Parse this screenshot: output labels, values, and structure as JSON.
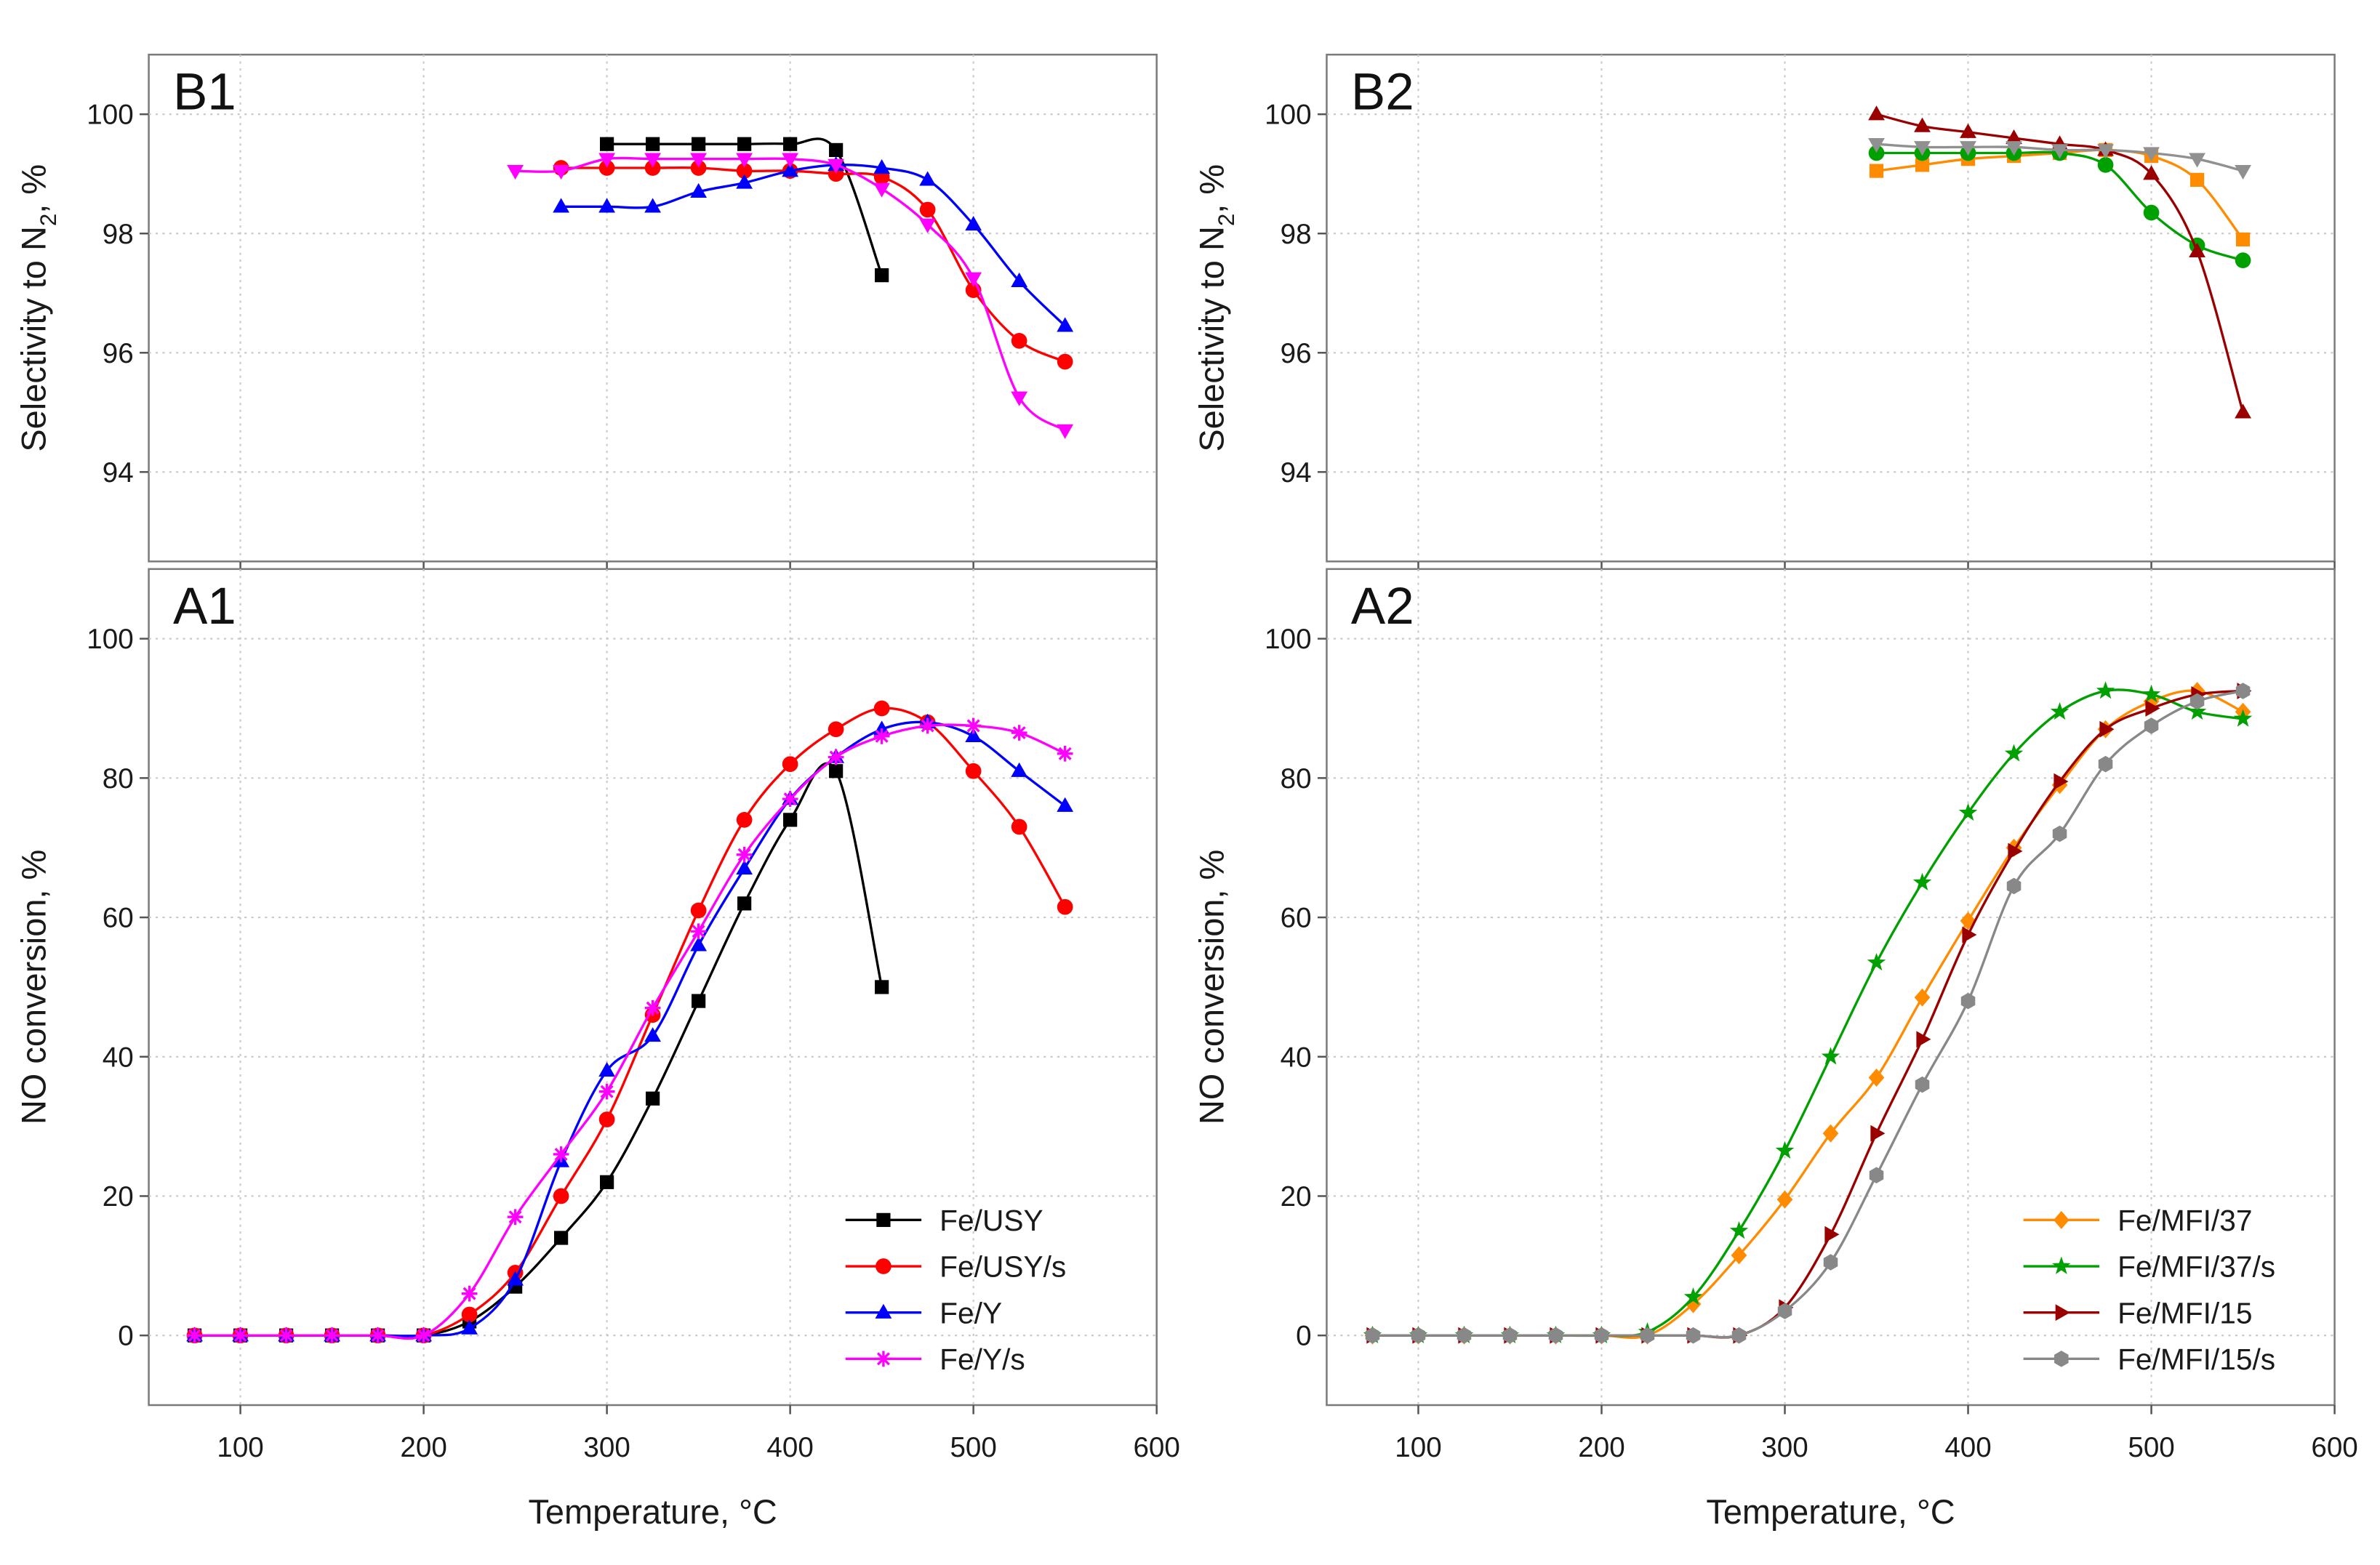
{
  "chart_data": [
    {
      "id": "B1",
      "panel_label": "B1",
      "type": "line",
      "xlabel": "",
      "ylabel_main": "Selectivity to N",
      "ylabel_sub": "2",
      "ylabel_tail": ", %",
      "xlim": [
        50,
        600
      ],
      "ylim": [
        92.5,
        101
      ],
      "xticks": [],
      "yticks": [
        94,
        96,
        98,
        100
      ],
      "legend": false,
      "series": [
        {
          "name": "Fe/USY",
          "color": "#000000",
          "marker": "square",
          "x": [
            300,
            325,
            350,
            375,
            400,
            425,
            450
          ],
          "y": [
            99.5,
            99.5,
            99.5,
            99.5,
            99.5,
            99.4,
            97.3
          ]
        },
        {
          "name": "Fe/USY/s",
          "color": "#ff0000",
          "marker": "circle",
          "x": [
            275,
            300,
            325,
            350,
            375,
            400,
            425,
            450,
            475,
            500,
            525,
            550
          ],
          "y": [
            99.1,
            99.1,
            99.1,
            99.1,
            99.05,
            99.05,
            99.0,
            98.95,
            98.4,
            97.05,
            96.2,
            95.85
          ]
        },
        {
          "name": "Fe/Y",
          "color": "#0000ff",
          "marker": "triangle-up",
          "x": [
            275,
            300,
            325,
            350,
            375,
            400,
            425,
            450,
            475,
            500,
            525,
            550
          ],
          "y": [
            98.45,
            98.45,
            98.45,
            98.7,
            98.85,
            99.05,
            99.15,
            99.1,
            98.9,
            98.15,
            97.2,
            96.45
          ]
        },
        {
          "name": "Fe/Y/s",
          "color": "#ff00ff",
          "marker": "triangle-down",
          "x": [
            250,
            275,
            300,
            325,
            350,
            375,
            400,
            425,
            450,
            475,
            500,
            525,
            550
          ],
          "y": [
            99.05,
            99.05,
            99.25,
            99.25,
            99.25,
            99.25,
            99.25,
            99.15,
            98.75,
            98.15,
            97.25,
            95.25,
            94.7
          ]
        }
      ]
    },
    {
      "id": "B2",
      "panel_label": "B2",
      "type": "line",
      "xlabel": "",
      "ylabel_main": "Selectivity to N",
      "ylabel_sub": "2",
      "ylabel_tail": ", %",
      "xlim": [
        50,
        600
      ],
      "ylim": [
        92.5,
        101
      ],
      "xticks": [],
      "yticks": [
        94,
        96,
        98,
        100
      ],
      "legend": false,
      "series": [
        {
          "name": "Fe/MFI/37",
          "color": "#ff8c00",
          "marker": "square",
          "x": [
            350,
            375,
            400,
            425,
            450,
            475,
            500,
            525,
            550
          ],
          "y": [
            99.05,
            99.15,
            99.25,
            99.3,
            99.35,
            99.4,
            99.3,
            98.9,
            97.9
          ]
        },
        {
          "name": "Fe/MFI/37/s",
          "color": "#00a000",
          "marker": "circle",
          "x": [
            350,
            375,
            400,
            425,
            450,
            475,
            500,
            525,
            550
          ],
          "y": [
            99.35,
            99.35,
            99.35,
            99.35,
            99.35,
            99.15,
            98.35,
            97.8,
            97.55
          ]
        },
        {
          "name": "Fe/MFI/15",
          "color": "#9b0000",
          "marker": "triangle-up",
          "x": [
            350,
            375,
            400,
            425,
            450,
            475,
            500,
            525,
            550
          ],
          "y": [
            100.0,
            99.8,
            99.7,
            99.6,
            99.5,
            99.4,
            99.0,
            97.7,
            95.0
          ]
        },
        {
          "name": "Fe/MFI/15/s",
          "color": "#909090",
          "marker": "triangle-down",
          "x": [
            350,
            375,
            400,
            425,
            450,
            475,
            500,
            525,
            550
          ],
          "y": [
            99.5,
            99.45,
            99.45,
            99.45,
            99.4,
            99.4,
            99.35,
            99.25,
            99.05
          ]
        }
      ]
    },
    {
      "id": "A1",
      "panel_label": "A1",
      "type": "line",
      "xlabel": "Temperature, °C",
      "ylabel_main": "NO conversion, %",
      "ylabel_sub": "",
      "ylabel_tail": "",
      "xlim": [
        50,
        600
      ],
      "ylim": [
        -10,
        110
      ],
      "xticks": [
        100,
        200,
        300,
        400,
        500,
        600
      ],
      "yticks": [
        0,
        20,
        40,
        60,
        80,
        100
      ],
      "legend": true,
      "legend_position": "bottom-right",
      "series": [
        {
          "name": "Fe/USY",
          "color": "#000000",
          "marker": "square",
          "x": [
            75,
            100,
            125,
            150,
            175,
            200,
            225,
            250,
            275,
            300,
            325,
            350,
            375,
            400,
            425,
            450
          ],
          "y": [
            0,
            0,
            0,
            0,
            0,
            0,
            2,
            7,
            14,
            22,
            34,
            48,
            62,
            74,
            81,
            50
          ]
        },
        {
          "name": "Fe/USY/s",
          "color": "#ff0000",
          "marker": "circle",
          "x": [
            75,
            100,
            125,
            150,
            175,
            200,
            225,
            250,
            275,
            300,
            325,
            350,
            375,
            400,
            425,
            450,
            475,
            500,
            525,
            550
          ],
          "y": [
            0,
            0,
            0,
            0,
            0,
            0,
            3,
            9,
            20,
            31,
            46,
            61,
            74,
            82,
            87,
            90,
            88,
            81,
            73,
            61.5
          ]
        },
        {
          "name": "Fe/Y",
          "color": "#0000ff",
          "marker": "triangle-up",
          "x": [
            75,
            100,
            125,
            150,
            175,
            200,
            225,
            250,
            275,
            300,
            325,
            350,
            375,
            400,
            425,
            450,
            475,
            500,
            525,
            550
          ],
          "y": [
            0,
            0,
            0,
            0,
            0,
            0,
            1,
            8,
            25,
            38,
            43,
            56,
            67,
            77,
            83,
            87,
            88,
            86,
            81,
            76
          ]
        },
        {
          "name": "Fe/Y/s",
          "color": "#ff00ff",
          "marker": "star",
          "x": [
            75,
            100,
            125,
            150,
            175,
            200,
            225,
            250,
            275,
            300,
            325,
            350,
            375,
            400,
            425,
            450,
            475,
            500,
            525,
            550
          ],
          "y": [
            0,
            0,
            0,
            0,
            0,
            0,
            6,
            17,
            26,
            35,
            47,
            58,
            69,
            77,
            83,
            86,
            87.5,
            87.5,
            86.5,
            83.5
          ]
        }
      ]
    },
    {
      "id": "A2",
      "panel_label": "A2",
      "type": "line",
      "xlabel": "Temperature, °C",
      "ylabel_main": "NO conversion, %",
      "ylabel_sub": "",
      "ylabel_tail": "",
      "xlim": [
        50,
        600
      ],
      "ylim": [
        -10,
        110
      ],
      "xticks": [
        100,
        200,
        300,
        400,
        500,
        600
      ],
      "yticks": [
        0,
        20,
        40,
        60,
        80,
        100
      ],
      "legend": true,
      "legend_position": "bottom-right",
      "series": [
        {
          "name": "Fe/MFI/37",
          "color": "#ff8c00",
          "marker": "diamond",
          "x": [
            75,
            100,
            125,
            150,
            175,
            200,
            225,
            250,
            275,
            300,
            325,
            350,
            375,
            400,
            425,
            450,
            475,
            500,
            525,
            550
          ],
          "y": [
            0,
            0,
            0,
            0,
            0,
            0,
            0,
            4.5,
            11.5,
            19.5,
            29,
            37,
            48.5,
            59.5,
            70,
            79,
            87,
            91,
            92.5,
            89.5
          ]
        },
        {
          "name": "Fe/MFI/37/s",
          "color": "#00a000",
          "marker": "star5",
          "x": [
            75,
            100,
            125,
            150,
            175,
            200,
            225,
            250,
            275,
            300,
            325,
            350,
            375,
            400,
            425,
            450,
            475,
            500,
            525,
            550
          ],
          "y": [
            0,
            0,
            0,
            0,
            0,
            0,
            0.5,
            5.5,
            15,
            26.5,
            40,
            53.5,
            65,
            75,
            83.5,
            89.5,
            92.5,
            92,
            89.5,
            88.5
          ]
        },
        {
          "name": "Fe/MFI/15",
          "color": "#9b0000",
          "marker": "triangle-right",
          "x": [
            75,
            100,
            125,
            150,
            175,
            200,
            225,
            250,
            275,
            300,
            325,
            350,
            375,
            400,
            425,
            450,
            475,
            500,
            525,
            550
          ],
          "y": [
            0,
            0,
            0,
            0,
            0,
            0,
            0,
            0,
            0,
            4,
            14.5,
            29,
            42.5,
            57.5,
            69.5,
            79.5,
            87,
            90,
            92,
            92.5
          ]
        },
        {
          "name": "Fe/MFI/15/s",
          "color": "#888888",
          "marker": "hexagon",
          "x": [
            75,
            100,
            125,
            150,
            175,
            200,
            225,
            250,
            275,
            300,
            325,
            350,
            375,
            400,
            425,
            450,
            475,
            500,
            525,
            550
          ],
          "y": [
            0,
            0,
            0,
            0,
            0,
            0,
            0,
            0,
            0,
            3.5,
            10.5,
            23,
            36,
            48,
            64.5,
            72,
            82,
            87.5,
            91,
            92.5
          ]
        }
      ]
    }
  ]
}
